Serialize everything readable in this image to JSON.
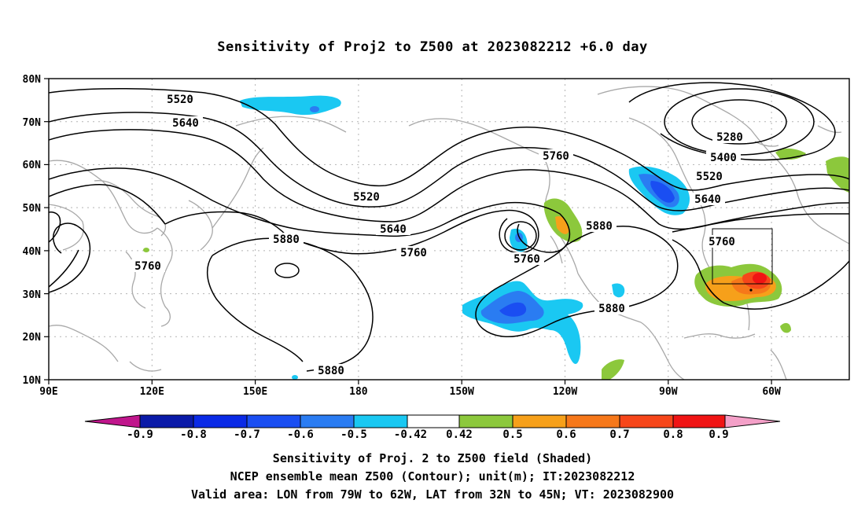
{
  "title": "Sensitivity of Proj2 to Z500 at 2023082212 +6.0 day",
  "axes": {
    "lat_labels": [
      "80N",
      "70N",
      "60N",
      "50N",
      "40N",
      "30N",
      "20N",
      "10N"
    ],
    "lon_labels": [
      "90E",
      "120E",
      "150E",
      "180",
      "150W",
      "120W",
      "90W",
      "60W"
    ]
  },
  "contour_labels": {
    "c5520a": "5520",
    "c5640a": "5640",
    "c5520b": "5520",
    "c5640b": "5640",
    "c5760a": "5760",
    "c5880a": "5880",
    "c5760b": "5760",
    "c5760c": "5760",
    "c5880b": "5880",
    "c5880c": "5880",
    "c5880d": "5880",
    "c5760d": "5760",
    "c5640c": "5640",
    "c5520c": "5520",
    "c5400": "5400",
    "c5280": "5280",
    "c5760e": "5760"
  },
  "colorbar": {
    "labels": [
      "-0.9",
      "-0.8",
      "-0.7",
      "-0.6",
      "-0.5",
      "-0.42",
      "0.42",
      "0.5",
      "0.6",
      "0.7",
      "0.8",
      "0.9"
    ],
    "colors": {
      "neg_extreme": "#c0168c",
      "neg": [
        "#0a1aa8",
        "#0a2ae6",
        "#1a4ef2",
        "#2a7cf2",
        "#1ac8f2"
      ],
      "neutral": "#ffffff",
      "pos": [
        "#8cc83c",
        "#f6a01a",
        "#f6781a",
        "#f6461a",
        "#f01414"
      ],
      "pos_extreme": "#f4a0c8"
    }
  },
  "footer": {
    "line1": "Sensitivity of Proj. 2 to Z500 field (Shaded)",
    "line2": "NCEP ensemble mean Z500 (Contour); unit(m); IT:2023082212",
    "line3": "Valid area: LON from 79W to 62W, LAT from 32N to 45N; VT: 2023082900"
  }
}
